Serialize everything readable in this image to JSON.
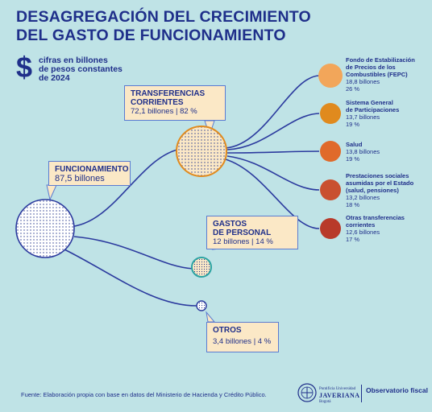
{
  "title": {
    "line1": "DESAGREGACIÓN DEL CRECIMIENTO",
    "line2": "DEL GASTO DE FUNCIONAMIENTO"
  },
  "unit": {
    "symbol": "$",
    "line1": "cifras en billones",
    "line2": "de pesos constantes",
    "line3": "de 2024"
  },
  "nodes": {
    "funcionamiento": {
      "name": "FUNCIONAMIENTO",
      "value": "87,5 billones"
    },
    "transferencias": {
      "name1": "TRANSFERENCIAS",
      "name2": "CORRIENTES",
      "value": "72,1 billones | 82 %"
    },
    "personal": {
      "name1": "GASTOS",
      "name2": "DE PERSONAL",
      "value": "12 billones | 14 %"
    },
    "otros": {
      "name": "OTROS",
      "value": "3,4 billones | 4 %"
    }
  },
  "leaves": [
    {
      "lines": [
        "Fondo de Estabilización",
        "de Precios de los",
        "Combustibles (FEPC)"
      ],
      "value": "18,8  billones",
      "pct": "26 %",
      "color": "#f2a65a"
    },
    {
      "lines": [
        "Sistema General",
        "de Participaciones"
      ],
      "value": "13,7  billones",
      "pct": "19 %",
      "color": "#e08a1e"
    },
    {
      "lines": [
        "Salud"
      ],
      "value": "13,8  billones",
      "pct": "19 %",
      "color": "#e06a2a"
    },
    {
      "lines": [
        "Prestaciones sociales",
        "asumidas por el Estado",
        "(salud, pensiones)"
      ],
      "value": "13,2  billones",
      "pct": "18 %",
      "color": "#c9502f"
    },
    {
      "lines": [
        "Otras transferencias",
        "corrientes"
      ],
      "value": "12,6  billones",
      "pct": "17 %",
      "color": "#b83a2a"
    }
  ],
  "footer": "Fuente: Elaboración propia con base en datos del Ministerio de Hacienda y Crédito Público.",
  "logos": {
    "javeriana_line1": "Pontificia Universidad",
    "javeriana_line2": "JAVERIANA",
    "javeriana_line3": "Bogotá",
    "observatorio": "Observatorio fiscal"
  }
}
